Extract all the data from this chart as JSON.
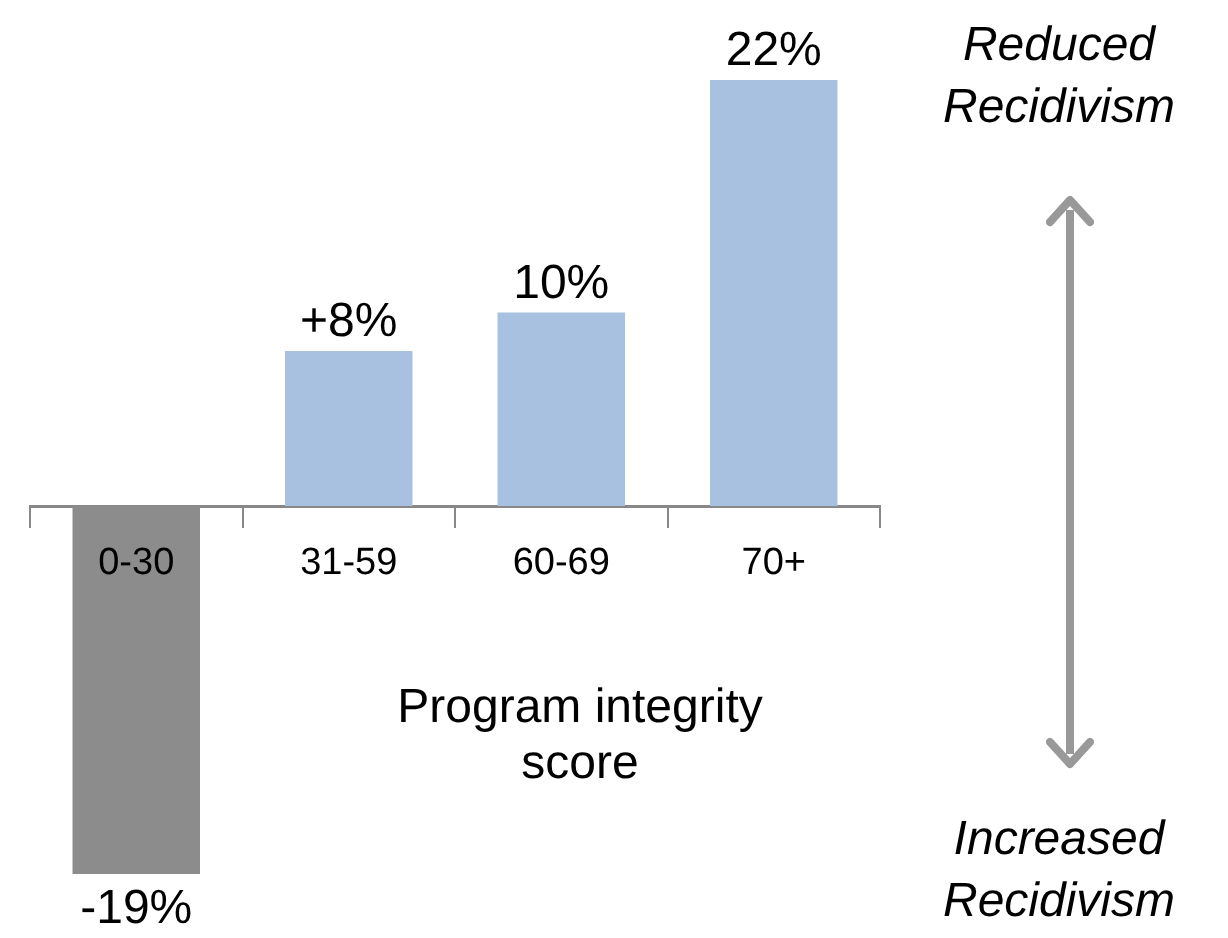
{
  "chart_data": {
    "type": "bar",
    "xlabel": "Program integrity score",
    "categories": [
      "0-30",
      "31-59",
      "60-69",
      "70+"
    ],
    "values": [
      -19,
      8,
      10,
      22
    ],
    "value_labels": [
      "-19%",
      "+8%",
      "10%",
      "22%"
    ],
    "colors": [
      "#8c8c8c",
      "#a8c1e0",
      "#a8c1e0",
      "#a8c1e0"
    ],
    "tick_labels": "x",
    "grid": false,
    "legend": false,
    "annotations": [
      "Reduced Recidivism",
      "Increased Recidivism"
    ]
  }
}
